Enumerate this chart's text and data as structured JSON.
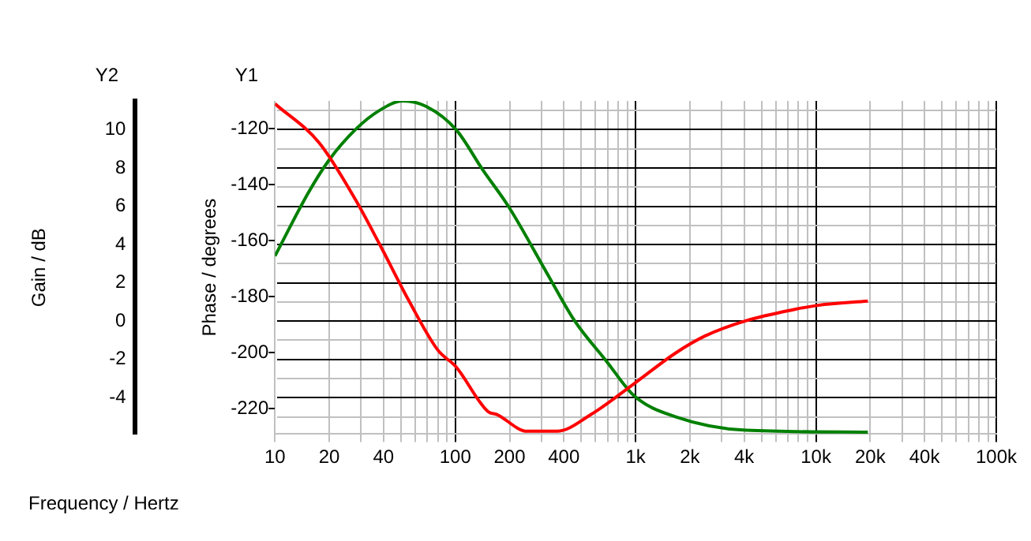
{
  "chart_data": {
    "type": "line",
    "xlabel": "Frequency / Hertz",
    "ylabel": "Phase / degrees",
    "y2label": "Gain / dB",
    "annotations": [
      "Y2",
      "Y1"
    ],
    "log": "x",
    "grid": true,
    "legend": false,
    "marker": "none",
    "line_style": "solid",
    "xlim": [
      10,
      100000
    ],
    "xticks": [
      10,
      20,
      {
        "value": 30,
        "label": null
      },
      40,
      {
        "value": 50,
        "label": null
      },
      {
        "value": 60,
        "label": null
      },
      {
        "value": 70,
        "label": null
      },
      {
        "value": 80,
        "label": null
      },
      {
        "value": 90,
        "label": null
      },
      100,
      200,
      {
        "value": 300,
        "label": null
      },
      400,
      {
        "value": 500,
        "label": null
      },
      {
        "value": 600,
        "label": null
      },
      {
        "value": 700,
        "label": null
      },
      {
        "value": 800,
        "label": null
      },
      {
        "value": 900,
        "label": null
      },
      {
        "value": 1000,
        "label": "1k"
      },
      {
        "value": 2000,
        "label": "2k"
      },
      {
        "value": 3000,
        "label": null
      },
      {
        "value": 4000,
        "label": "4k"
      },
      {
        "value": 5000,
        "label": null
      },
      {
        "value": 6000,
        "label": null
      },
      {
        "value": 7000,
        "label": null
      },
      {
        "value": 8000,
        "label": null
      },
      {
        "value": 9000,
        "label": null
      },
      {
        "value": 10000,
        "label": "10k"
      },
      {
        "value": 20000,
        "label": "20k"
      },
      {
        "value": 30000,
        "label": null
      },
      {
        "value": 40000,
        "label": "40k"
      },
      {
        "value": 50000,
        "label": null
      },
      {
        "value": 60000,
        "label": null
      },
      {
        "value": 70000,
        "label": null
      },
      {
        "value": 80000,
        "label": null
      },
      {
        "value": 90000,
        "label": null
      },
      {
        "value": 100000,
        "label": "100k"
      }
    ],
    "ylim": [
      -229,
      -110
    ],
    "yticks": [
      -120,
      -140,
      -160,
      -180,
      -200,
      -220
    ],
    "y2lim": [
      -5.9,
      11.5
    ],
    "y2ticks": [
      {
        "value": 11,
        "label": null
      },
      10,
      {
        "value": 9,
        "label": null
      },
      8,
      {
        "value": 7,
        "label": null
      },
      6,
      {
        "value": 5,
        "label": null
      },
      4,
      {
        "value": 3,
        "label": null
      },
      2,
      {
        "value": 1,
        "label": null
      },
      0,
      {
        "value": -1,
        "label": null
      },
      -2,
      {
        "value": -3,
        "label": null
      },
      -4,
      {
        "value": -5,
        "label": null
      }
    ],
    "series": [
      {
        "color": "#ff0000",
        "x": [
          10,
          17.6,
          27.8,
          37.9,
          54.9,
          80,
          101,
          152,
          170,
          250,
          366,
          566,
          980,
          1670,
          2420,
          4100,
          7560,
          10300,
          19400
        ],
        "values": [
          -111,
          -125,
          -145,
          -161,
          -181,
          -199,
          -205,
          -221,
          -222,
          -228,
          -228,
          -222,
          -211,
          -200,
          -194,
          -188.5,
          -184.5,
          -183,
          -181.5
        ]
      },
      {
        "color": "#008000",
        "axis": "y2",
        "x": [
          10,
          15.3,
          19.9,
          27.9,
          37.9,
          51.3,
          69.4,
          101,
          142,
          200,
          327,
          460,
          690,
          980,
          1670,
          4100,
          19400
        ],
        "values": [
          3.4,
          6.7,
          8.4,
          10,
          11,
          11.5,
          11.2,
          10,
          7.9,
          5.9,
          2.4,
          0,
          -2.1,
          -3.9,
          -5,
          -5.7,
          -5.8
        ]
      }
    ]
  }
}
